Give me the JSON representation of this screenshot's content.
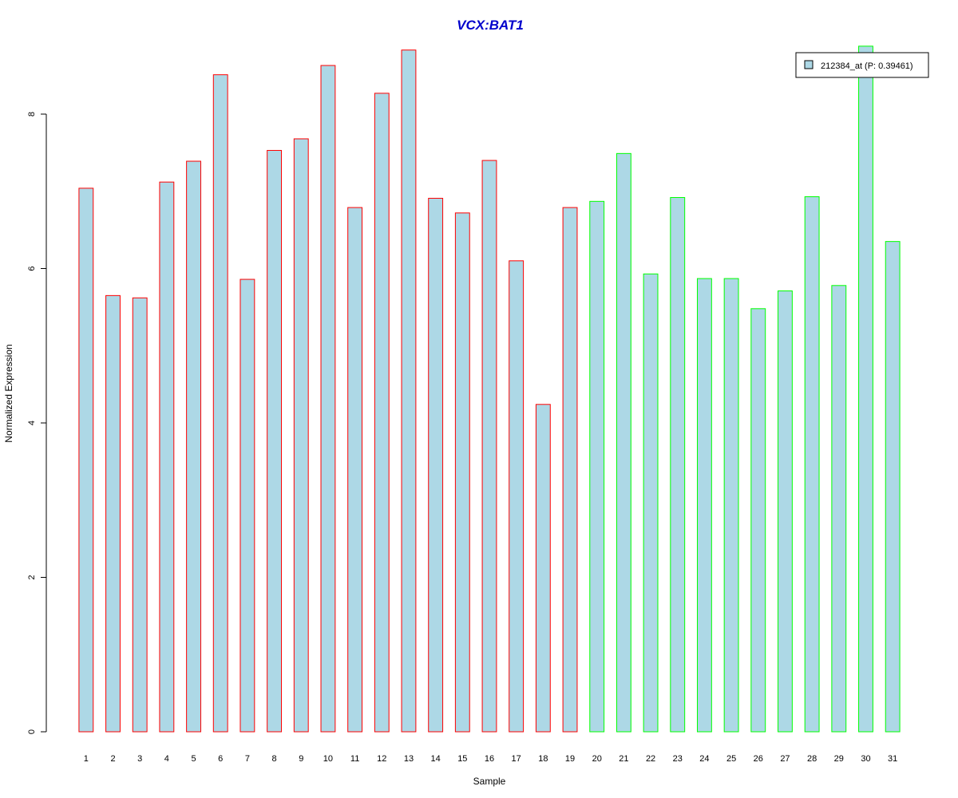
{
  "chart_data": {
    "type": "bar",
    "title": "VCX:BAT1",
    "title_color": "#0000cc",
    "xlabel": "Sample",
    "ylabel": "Normalized Expression",
    "ylim": [
      0,
      8.9
    ],
    "yticks": [
      0,
      2,
      4,
      6,
      8
    ],
    "categories": [
      "1",
      "2",
      "3",
      "4",
      "5",
      "6",
      "7",
      "8",
      "9",
      "10",
      "11",
      "12",
      "13",
      "14",
      "15",
      "16",
      "17",
      "18",
      "19",
      "20",
      "21",
      "22",
      "23",
      "24",
      "25",
      "26",
      "27",
      "28",
      "29",
      "30",
      "31"
    ],
    "values": [
      7.04,
      5.65,
      5.62,
      7.12,
      7.39,
      8.51,
      5.86,
      7.53,
      7.68,
      8.63,
      6.79,
      8.27,
      8.83,
      6.91,
      6.72,
      7.4,
      6.1,
      4.24,
      6.79,
      6.87,
      7.49,
      5.93,
      6.92,
      5.87,
      5.87,
      5.48,
      5.71,
      6.93,
      5.78,
      8.88,
      6.35
    ],
    "groups": [
      "red",
      "red",
      "red",
      "red",
      "red",
      "red",
      "red",
      "red",
      "red",
      "red",
      "red",
      "red",
      "red",
      "red",
      "red",
      "red",
      "red",
      "red",
      "red",
      "green",
      "green",
      "green",
      "green",
      "green",
      "green",
      "green",
      "green",
      "green",
      "green",
      "green",
      "green"
    ],
    "fill_color": "#add8e6",
    "group_colors": {
      "red": "#ff0000",
      "green": "#00ff00"
    },
    "legend": {
      "label": "212384_at (P: 0.39461)",
      "position": "top-right",
      "swatch_color": "#add8e6"
    },
    "grid": false
  }
}
